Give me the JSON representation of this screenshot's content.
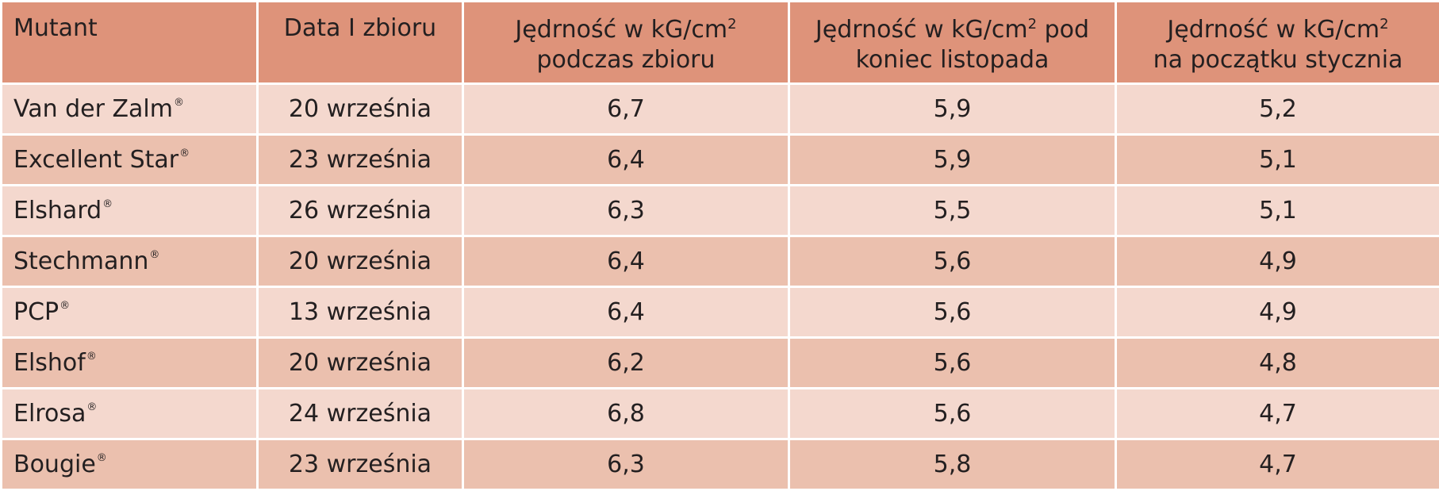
{
  "table": {
    "headers": {
      "mutant": "Mutant",
      "date": "Data I zbioru",
      "harvest_line1": "Jędrność w kG/cm",
      "harvest_sup": "2",
      "harvest_line2": "podczas zbioru",
      "november_line1_pre": "Jędrność w kG/cm",
      "november_sup": "2",
      "november_line1_post": " pod",
      "november_line2": "koniec listopada",
      "january_line1": "Jędrność w kG/cm",
      "january_sup": "2",
      "january_line2": "na początku stycznia"
    },
    "registered_mark": "®",
    "rows": [
      {
        "mutant": "Van der Zalm",
        "date": "20 września",
        "harvest": "6,7",
        "november": "5,9",
        "january": "5,2"
      },
      {
        "mutant": "Excellent Star",
        "date": "23 września",
        "harvest": "6,4",
        "november": "5,9",
        "january": "5,1"
      },
      {
        "mutant": "Elshard",
        "date": "26 września",
        "harvest": "6,3",
        "november": "5,5",
        "january": "5,1"
      },
      {
        "mutant": "Stechmann",
        "date": "20 września",
        "harvest": "6,4",
        "november": "5,6",
        "january": "4,9"
      },
      {
        "mutant": "PCP",
        "date": "13 września",
        "harvest": "6,4",
        "november": "5,6",
        "january": "4,9"
      },
      {
        "mutant": "Elshof",
        "date": "20 września",
        "harvest": "6,2",
        "november": "5,6",
        "january": "4,8"
      },
      {
        "mutant": "Elrosa",
        "date": "24 września",
        "harvest": "6,8",
        "november": "5,6",
        "january": "4,7"
      },
      {
        "mutant": "Bougie",
        "date": "23 września",
        "harvest": "6,3",
        "november": "5,8",
        "january": "4,7"
      }
    ]
  },
  "colors": {
    "header_bg": "#de937a",
    "row_light": "#f4d8ce",
    "row_dark": "#ebc0ae",
    "text": "#231f20"
  }
}
